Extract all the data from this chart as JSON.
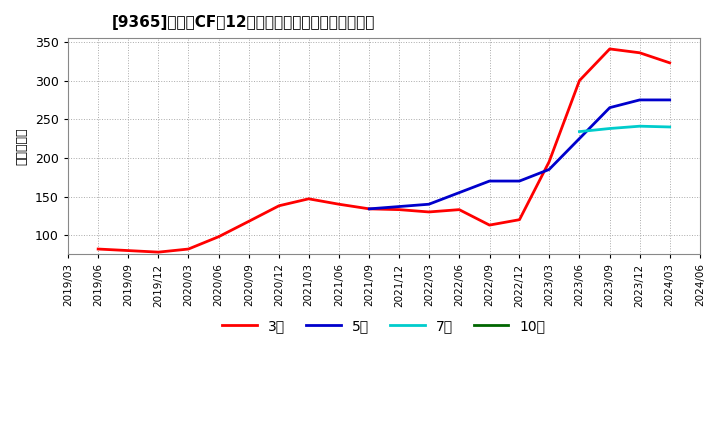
{
  "title": "[9365]　営業CFの12か月移動合計の標準偏差の推移",
  "ylabel": "（百万円）",
  "ylim": [
    75,
    355
  ],
  "yticks": [
    100,
    150,
    200,
    250,
    300,
    350
  ],
  "background_color": "#ffffff",
  "grid_color": "#aaaaaa",
  "series": {
    "3年": {
      "color": "#ff0000",
      "dates": [
        "2019/06",
        "2019/09",
        "2019/12",
        "2020/03",
        "2020/06",
        "2020/09",
        "2020/12",
        "2021/03",
        "2021/06",
        "2021/09",
        "2021/12",
        "2022/03",
        "2022/06",
        "2022/09",
        "2022/12",
        "2023/03",
        "2023/06",
        "2023/09",
        "2023/12",
        "2024/03"
      ],
      "values": [
        82,
        80,
        78,
        82,
        98,
        118,
        138,
        147,
        140,
        134,
        133,
        130,
        133,
        113,
        120,
        195,
        300,
        341,
        336,
        323
      ]
    },
    "5年": {
      "color": "#0000cc",
      "dates": [
        "2021/09",
        "2021/12",
        "2022/03",
        "2022/06",
        "2022/09",
        "2022/12",
        "2023/03",
        "2023/06",
        "2023/09",
        "2023/12",
        "2024/03"
      ],
      "values": [
        134,
        137,
        140,
        155,
        170,
        170,
        185,
        225,
        265,
        275,
        275
      ]
    },
    "7年": {
      "color": "#00cccc",
      "dates": [
        "2023/06",
        "2023/09",
        "2023/12",
        "2024/03"
      ],
      "values": [
        234,
        238,
        241,
        240
      ]
    },
    "10年": {
      "color": "#006600",
      "dates": [],
      "values": []
    }
  },
  "xtick_dates": [
    "2019/03",
    "2019/06",
    "2019/09",
    "2019/12",
    "2020/03",
    "2020/06",
    "2020/09",
    "2020/12",
    "2021/03",
    "2021/06",
    "2021/09",
    "2021/12",
    "2022/03",
    "2022/06",
    "2022/09",
    "2022/12",
    "2023/03",
    "2023/06",
    "2023/09",
    "2023/12",
    "2024/03",
    "2024/06"
  ],
  "legend_labels": [
    "3年",
    "5年",
    "7年",
    "10年"
  ],
  "legend_colors": [
    "#ff0000",
    "#0000cc",
    "#00cccc",
    "#006600"
  ]
}
